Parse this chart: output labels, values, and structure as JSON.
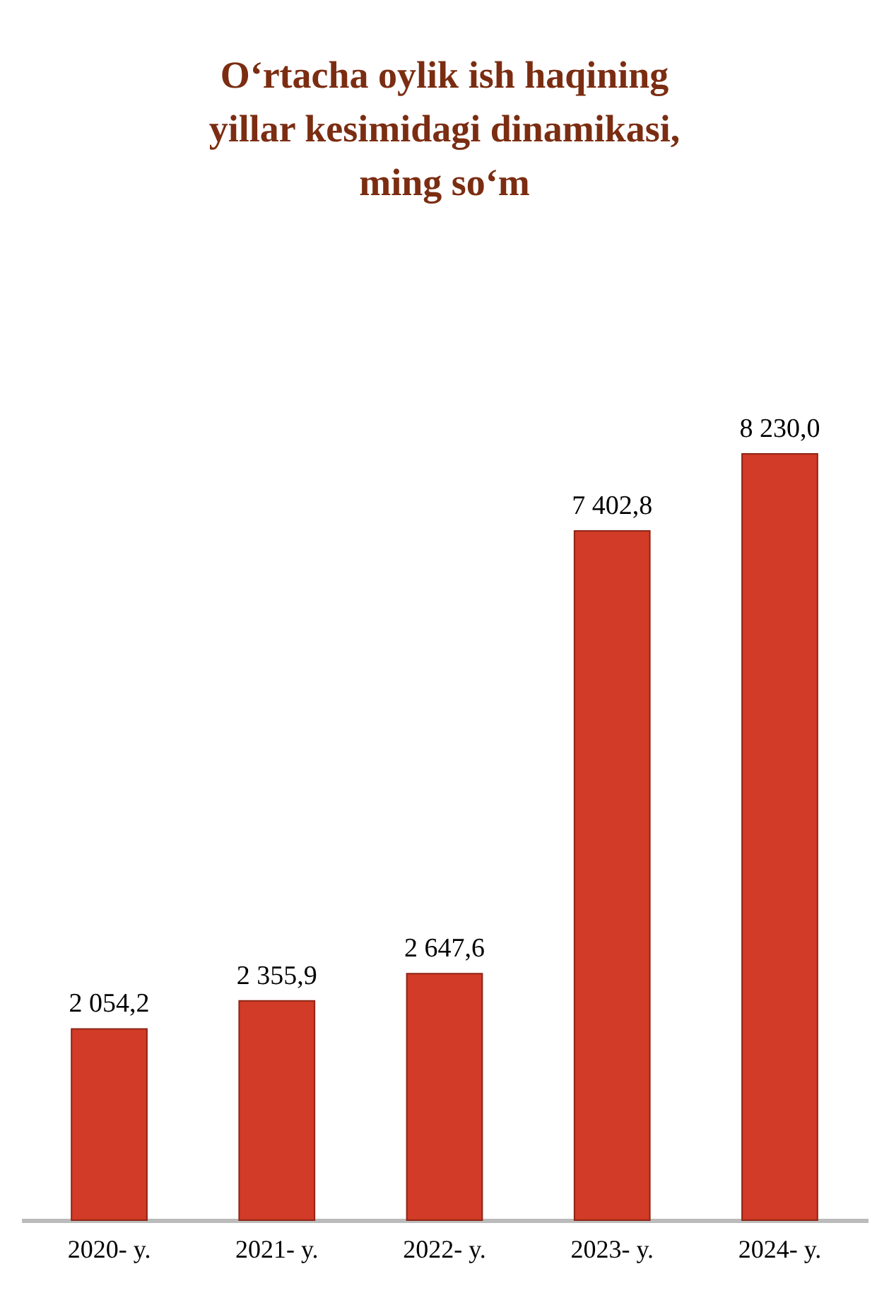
{
  "chart_data": {
    "type": "bar",
    "title": "O‘rtacha oylik ish haqining\nyillar kesimidagi dinamikasi,\nming so‘m",
    "categories": [
      "2020- y.",
      "2021- y.",
      "2022- y.",
      "2023- y.",
      "2024- y."
    ],
    "values": [
      2054.2,
      2355.9,
      2647.6,
      7402.8,
      8230.0
    ],
    "value_labels": [
      "2 054,2",
      "2 355,9",
      "2 647,6",
      "7 402,8",
      "8 230,0"
    ],
    "color": "#d13b27"
  }
}
